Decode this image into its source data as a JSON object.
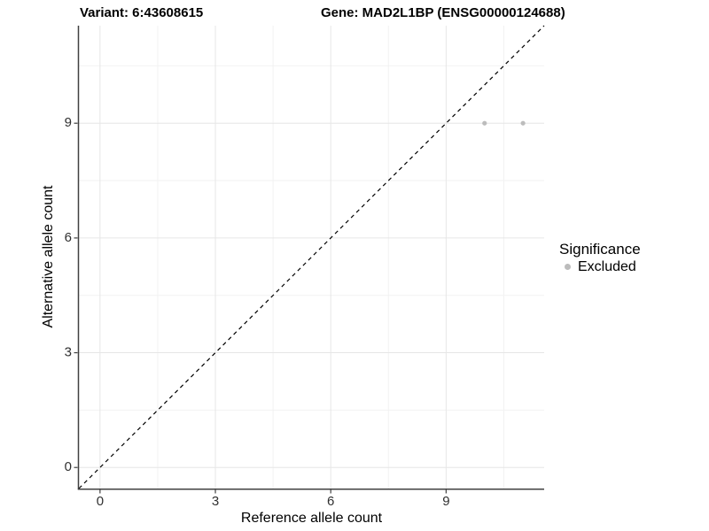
{
  "header": {
    "variant_title": "Variant: 6:43608615",
    "gene_title": "Gene: MAD2L1BP (ENSG00000124688)"
  },
  "legend": {
    "title": "Significance",
    "items": [
      {
        "label": "Excluded",
        "color": "#bcbcbc"
      }
    ]
  },
  "chart_data": {
    "type": "scatter",
    "xlabel": "Reference allele count",
    "ylabel": "Alternative allele count",
    "xlim": [
      -0.55,
      11.55
    ],
    "ylim": [
      -0.55,
      11.55
    ],
    "x_ticks": [
      0,
      3,
      6,
      9
    ],
    "y_ticks": [
      0,
      3,
      6,
      9
    ],
    "x_minor_ticks": [
      1.5,
      4.5,
      7.5,
      10.5
    ],
    "y_minor_ticks": [
      1.5,
      4.5,
      7.5,
      10.5
    ],
    "grid": "on",
    "legend_position": "right",
    "reference_line": {
      "kind": "identity",
      "slope": 1,
      "intercept": 0,
      "style": "dashed",
      "color": "#000000"
    },
    "series": [
      {
        "name": "Excluded",
        "color": "#bcbcbc",
        "points": [
          [
            10,
            9
          ],
          [
            11,
            9
          ]
        ]
      }
    ],
    "colors": {
      "grid_major": "#e6e6e6",
      "grid_minor": "#f2f2f2",
      "axis_line": "#404040",
      "tick_text": "#303030"
    }
  }
}
